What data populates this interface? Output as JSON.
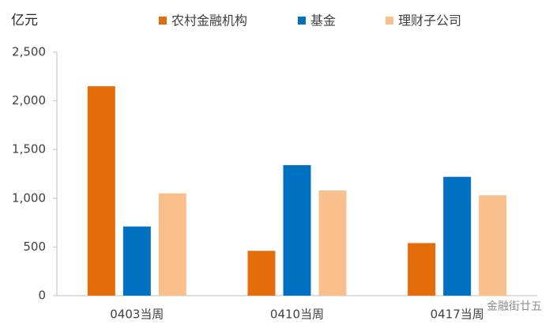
{
  "chart_data": {
    "type": "bar",
    "y_unit": "亿元",
    "categories": [
      "0403当周",
      "0410当周",
      "0417当周"
    ],
    "series": [
      {
        "name": "农村金融机构",
        "color": "#e46c0a",
        "values": [
          2150,
          460,
          540
        ]
      },
      {
        "name": "基金",
        "color": "#0070c0",
        "values": [
          710,
          1340,
          1220
        ]
      },
      {
        "name": "理财子公司",
        "color": "#f9c08e",
        "values": [
          1050,
          1080,
          1030
        ]
      }
    ],
    "ylim": [
      0,
      2500
    ],
    "yticks": [
      0,
      500,
      {
        "value": 1000,
        "label": "1,000"
      },
      {
        "value": 1500,
        "label": "1,500"
      },
      {
        "value": 2000,
        "label": "2,000"
      },
      {
        "value": 2500,
        "label": "2,500"
      }
    ],
    "grid": false,
    "legend": "top",
    "watermark": "金融街廿五"
  }
}
